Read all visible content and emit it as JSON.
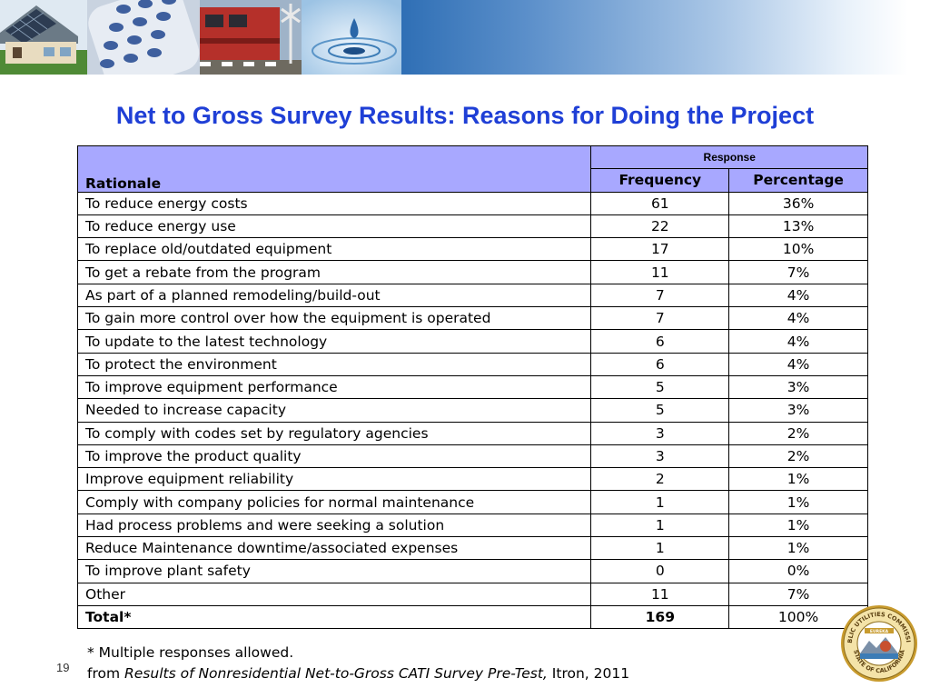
{
  "slide": {
    "title": "Net to Gross Survey Results: Reasons for Doing the Project",
    "number": "19"
  },
  "table": {
    "rationale_header": "Rationale",
    "response_header": "Response",
    "frequency_header": "Frequency",
    "percentage_header": "Percentage",
    "rows": [
      {
        "rationale": "To reduce energy costs",
        "frequency": "61",
        "percentage": "36%"
      },
      {
        "rationale": "To reduce energy use",
        "frequency": "22",
        "percentage": "13%"
      },
      {
        "rationale": "To replace old/outdated equipment",
        "frequency": "17",
        "percentage": "10%"
      },
      {
        "rationale": "To get a rebate from the program",
        "frequency": "11",
        "percentage": "7%"
      },
      {
        "rationale": "As part of a planned remodeling/build-out",
        "frequency": "7",
        "percentage": "4%"
      },
      {
        "rationale": "To gain more control over how the equipment is operated",
        "frequency": "7",
        "percentage": "4%"
      },
      {
        "rationale": "To update to the latest technology",
        "frequency": "6",
        "percentage": "4%"
      },
      {
        "rationale": "To protect the environment",
        "frequency": "6",
        "percentage": "4%"
      },
      {
        "rationale": "To improve equipment performance",
        "frequency": "5",
        "percentage": "3%"
      },
      {
        "rationale": "Needed to increase capacity",
        "frequency": "5",
        "percentage": "3%"
      },
      {
        "rationale": "To comply with codes set by regulatory agencies",
        "frequency": "3",
        "percentage": "2%"
      },
      {
        "rationale": "To improve the product quality",
        "frequency": "3",
        "percentage": "2%"
      },
      {
        "rationale": "Improve equipment reliability",
        "frequency": "2",
        "percentage": "1%"
      },
      {
        "rationale": "Comply with company policies for normal maintenance",
        "frequency": "1",
        "percentage": "1%"
      },
      {
        "rationale": "Had process problems and were seeking a solution",
        "frequency": "1",
        "percentage": "1%"
      },
      {
        "rationale": "Reduce Maintenance downtime/associated expenses",
        "frequency": "1",
        "percentage": "1%"
      },
      {
        "rationale": "To improve plant safety",
        "frequency": "0",
        "percentage": "0%"
      },
      {
        "rationale": "Other",
        "frequency": "11",
        "percentage": "7%"
      }
    ],
    "total": {
      "rationale": "Total*",
      "frequency": "169",
      "percentage": "100%"
    }
  },
  "footnote": {
    "note": "* Multiple responses allowed.",
    "source_prefix": "from ",
    "source_title": "Results of Nonresidential Net-to-Gross CATI Survey Pre-Test,",
    "source_suffix": " Itron, 2011"
  },
  "seal": {
    "top_text": "PUBLIC UTILITIES COMMISSION",
    "bottom_text": "STATE OF CALIFORNIA",
    "motto": "EUREKA"
  },
  "colors": {
    "title": "#1f3fd6",
    "header_fill": "#a8a8ff",
    "banner_blue": "#2f6fb5"
  }
}
